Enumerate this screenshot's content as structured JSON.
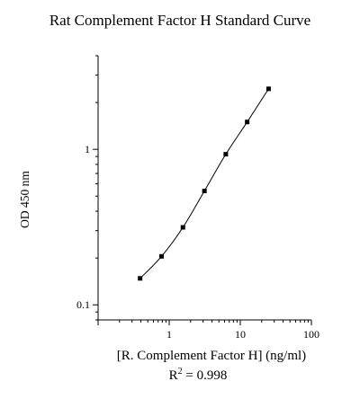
{
  "chart_data": {
    "type": "scatter",
    "title": "Rat Complement Factor H Standard Curve",
    "xlabel": "[R. Complement Factor H] (ng/ml)",
    "ylabel": "OD 450 nm",
    "annotation": {
      "prefix": "R",
      "superscript": "2",
      "suffix": " = 0.998"
    },
    "x_scale": "log",
    "y_scale": "log",
    "xlim": [
      0.1,
      100
    ],
    "ylim": [
      0.08,
      4
    ],
    "x_ticks": [
      {
        "value": 1,
        "label": "1"
      },
      {
        "value": 10,
        "label": "10"
      },
      {
        "value": 100,
        "label": "100"
      }
    ],
    "y_ticks": [
      {
        "value": 0.1,
        "label": "0.1"
      },
      {
        "value": 1,
        "label": "1"
      }
    ],
    "grid": false,
    "legend": "none",
    "series": [
      {
        "x": [
          0.39,
          0.78,
          1.56,
          3.13,
          6.25,
          12.5,
          25
        ],
        "y": [
          0.148,
          0.205,
          0.315,
          0.54,
          0.93,
          1.5,
          2.45
        ]
      }
    ],
    "colors": {
      "marker": "#000000",
      "line": "#000000",
      "axis": "#000000"
    }
  }
}
